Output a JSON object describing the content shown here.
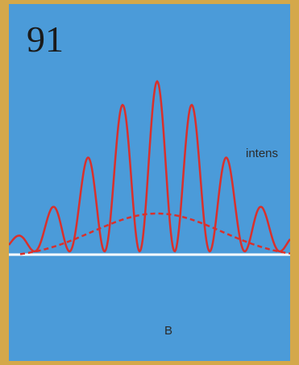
{
  "label": "91",
  "axis_label": "intens",
  "caption": "B"
}
